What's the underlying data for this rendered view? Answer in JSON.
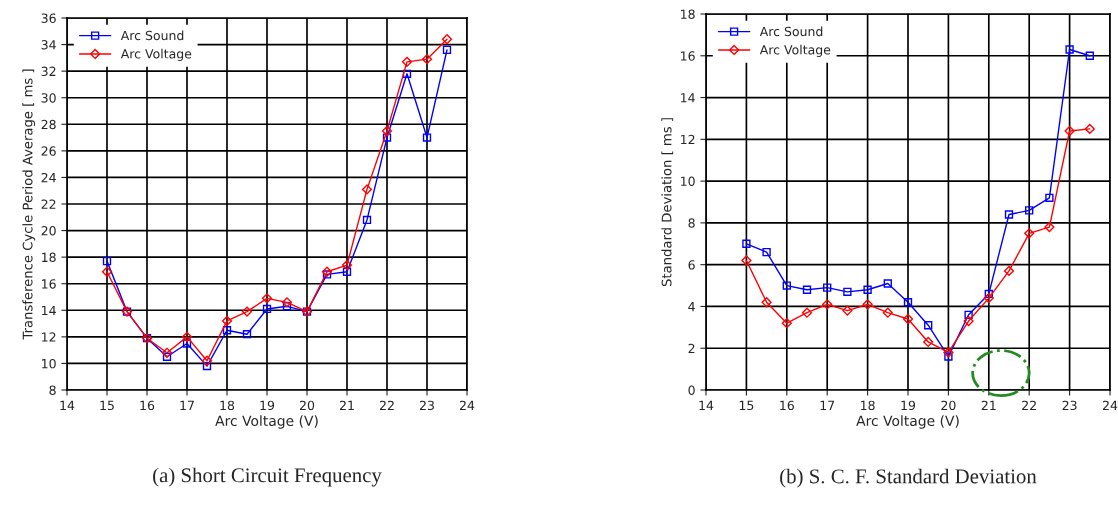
{
  "chart_data": [
    {
      "type": "line",
      "title": "(a) Short Circuit Frequency",
      "xlabel": "Arc Voltage (V)",
      "ylabel": "Transference Cycle Period Average [ ms ]",
      "x": [
        15,
        15.5,
        16,
        16.5,
        17,
        17.5,
        18,
        18.5,
        19,
        19.5,
        20,
        20.5,
        21,
        21.5,
        22,
        22.5,
        23,
        23.5
      ],
      "series": [
        {
          "name": "Arc Sound",
          "color": "#0000ff",
          "marker": "square",
          "values": [
            17.7,
            13.9,
            11.9,
            10.5,
            11.5,
            9.8,
            12.5,
            12.2,
            14.1,
            14.3,
            13.9,
            16.7,
            16.9,
            20.8,
            27.0,
            31.8,
            27.0,
            33.6
          ]
        },
        {
          "name": "Arc Voltage",
          "color": "#ff0000",
          "marker": "diamond",
          "values": [
            16.9,
            13.9,
            11.9,
            10.8,
            12.0,
            10.2,
            13.2,
            13.9,
            14.9,
            14.6,
            13.9,
            16.9,
            17.4,
            23.1,
            27.5,
            32.7,
            32.9,
            34.4
          ]
        }
      ],
      "xlim": [
        14,
        24
      ],
      "xticks": [
        14,
        15,
        16,
        17,
        18,
        19,
        20,
        21,
        22,
        23,
        24
      ],
      "ylim": [
        8,
        36
      ],
      "yticks": [
        8,
        10,
        12,
        14,
        16,
        18,
        20,
        22,
        24,
        26,
        28,
        30,
        32,
        34,
        36
      ],
      "grid": true,
      "legend": "top left",
      "line_style": "solid"
    },
    {
      "type": "line",
      "title": "(b) S. C. F. Standard Deviation",
      "xlabel": "Arc Voltage (V)",
      "ylabel": "Standard Deviation [ ms ]",
      "x": [
        15,
        15.5,
        16,
        16.5,
        17,
        17.5,
        18,
        18.5,
        19,
        19.5,
        20,
        20.5,
        21,
        21.5,
        22,
        22.5,
        23,
        23.5
      ],
      "series": [
        {
          "name": "Arc Sound",
          "color": "#0000ff",
          "marker": "square",
          "values": [
            7.0,
            6.6,
            5.0,
            4.8,
            4.9,
            4.7,
            4.8,
            5.1,
            4.2,
            3.1,
            1.6,
            3.6,
            4.6,
            8.4,
            8.6,
            9.2,
            16.3,
            16.0
          ]
        },
        {
          "name": "Arc Voltage",
          "color": "#ff0000",
          "marker": "diamond",
          "values": [
            6.2,
            4.2,
            3.2,
            3.7,
            4.1,
            3.8,
            4.1,
            3.7,
            3.4,
            2.3,
            1.8,
            3.3,
            4.4,
            5.7,
            7.5,
            7.8,
            12.4,
            12.5
          ]
        }
      ],
      "xlim": [
        14,
        24
      ],
      "xticks": [
        14,
        15,
        16,
        17,
        18,
        19,
        20,
        21,
        22,
        23,
        24
      ],
      "ylim": [
        0,
        18
      ],
      "yticks": [
        0,
        2,
        4,
        6,
        8,
        10,
        12,
        14,
        16,
        18
      ],
      "grid": true,
      "legend": "top left",
      "line_style": "solid"
    }
  ]
}
